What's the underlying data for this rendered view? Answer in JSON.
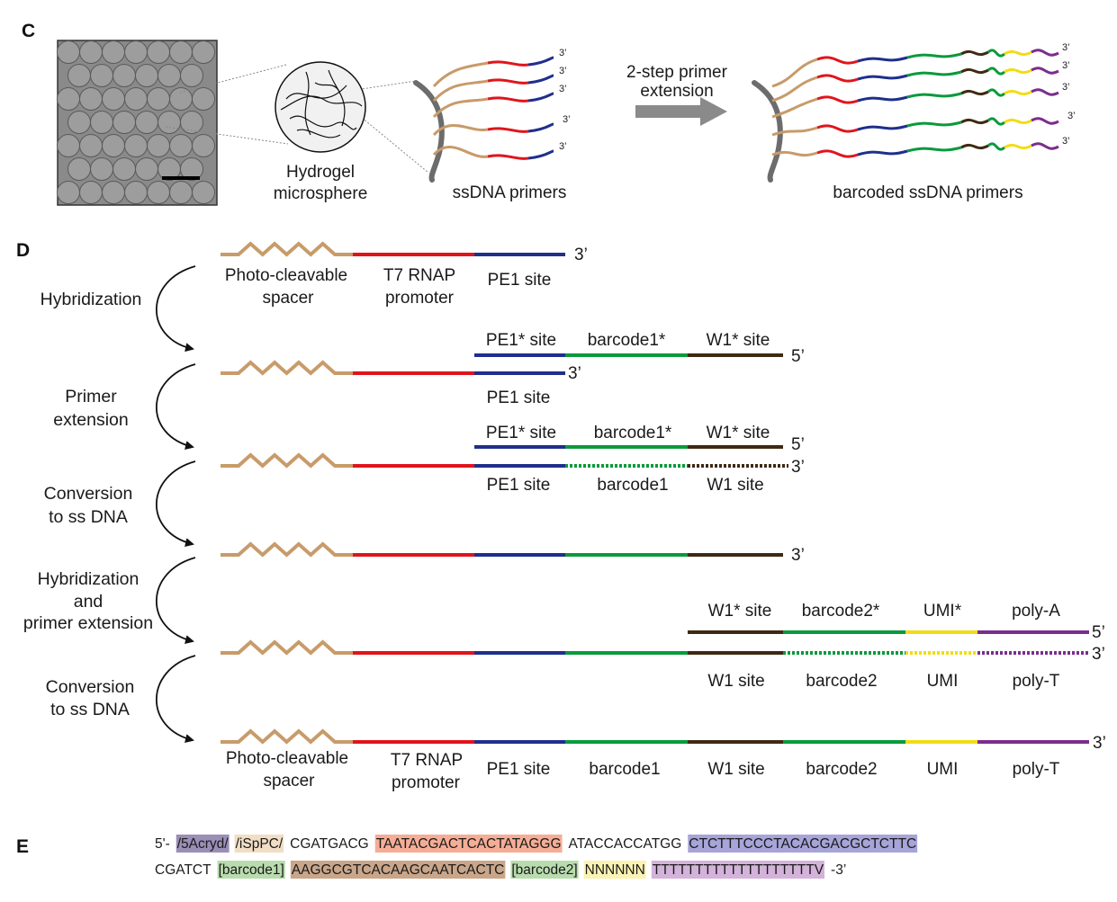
{
  "panels": {
    "c": "C",
    "d": "D",
    "e": "E"
  },
  "panel_c": {
    "hydrogel_label": [
      "Hydrogel",
      "microsphere"
    ],
    "ssdna_label": "ssDNA primers",
    "arrow_label": [
      "2-step primer",
      "extension"
    ],
    "barcoded_label": "barcoded ssDNA primers",
    "end_label": "3’"
  },
  "colors": {
    "spacer": "#c89b6a",
    "t7": "#e0141c",
    "pe1": "#1f2f8c",
    "barcode": "#0a9a3c",
    "w1": "#3e2a12",
    "umi": "#f2dc14",
    "poly": "#7b2d8e",
    "bead": "#6c6c6c"
  },
  "panel_d": {
    "steps": [
      [
        "Hybridization"
      ],
      [
        "Primer",
        "extension"
      ],
      [
        "Conversion",
        "to ss DNA"
      ],
      [
        "Hybridization",
        "and",
        "primer extension"
      ],
      [
        "Conversion",
        "to ss DNA"
      ]
    ],
    "row1": {
      "spacer": [
        "Photo-cleavable",
        "spacer"
      ],
      "t7": [
        "T7 RNAP",
        "promoter"
      ],
      "pe1": "PE1 site",
      "end": "3’"
    },
    "row2": {
      "pe1s": "PE1* site",
      "bc1s": "barcode1*",
      "w1s": "W1* site",
      "end5": "5’",
      "end3": "3’",
      "pe1": "PE1 site"
    },
    "row3": {
      "pe1s": "PE1* site",
      "bc1s": "barcode1*",
      "w1s": "W1* site",
      "end5": "5’",
      "end3": "3’",
      "pe1": "PE1 site",
      "bc1": "barcode1",
      "w1": "W1 site"
    },
    "row4": {
      "end": "3’"
    },
    "row5": {
      "w1s": "W1* site",
      "bc2s": "barcode2*",
      "umis": "UMI*",
      "polya": "poly-A",
      "end5": "5’",
      "end3": "3’",
      "w1": "W1 site",
      "bc2": "barcode2",
      "umi": "UMI",
      "polyt": "poly-T"
    },
    "row6": {
      "spacer": [
        "Photo-cleavable",
        "spacer"
      ],
      "t7": [
        "T7 RNAP",
        "promoter"
      ],
      "pe1": "PE1 site",
      "bc1": "barcode1",
      "w1": "W1 site",
      "bc2": "barcode2",
      "umi": "UMI",
      "polyt": "poly-T",
      "end": "3’"
    }
  },
  "panel_e": {
    "line1": [
      {
        "text": "5'-",
        "hl": ""
      },
      {
        "text": "/5Acryd/",
        "hl": "#9a8fb6"
      },
      {
        "text": "/iSpPC/",
        "hl": "#f1dec5"
      },
      {
        "text": "CGATGACG",
        "hl": ""
      },
      {
        "text": "TAATACGACTCACTATAGGG",
        "hl": "#f5ad96"
      },
      {
        "text": "ATACCACCATGG",
        "hl": ""
      },
      {
        "text": "CTCTTTCCCTACACGACGCTCTTC",
        "hl": "#a6a4d8"
      }
    ],
    "line2": [
      {
        "text": "CGATCT",
        "hl": ""
      },
      {
        "text": "[barcode1]",
        "hl": "#b9dcae"
      },
      {
        "text": "AAGGCGTCACAAGCAATCACTC",
        "hl": "#c9a68a"
      },
      {
        "text": "[barcode2]",
        "hl": "#b9dcae"
      },
      {
        "text": "NNNNNN",
        "hl": "#fbf3b3"
      },
      {
        "text": "TTTTTTTTTTTTTTTTTTTV",
        "hl": "#d4b3db"
      },
      {
        "text": "-3’",
        "hl": ""
      }
    ]
  }
}
